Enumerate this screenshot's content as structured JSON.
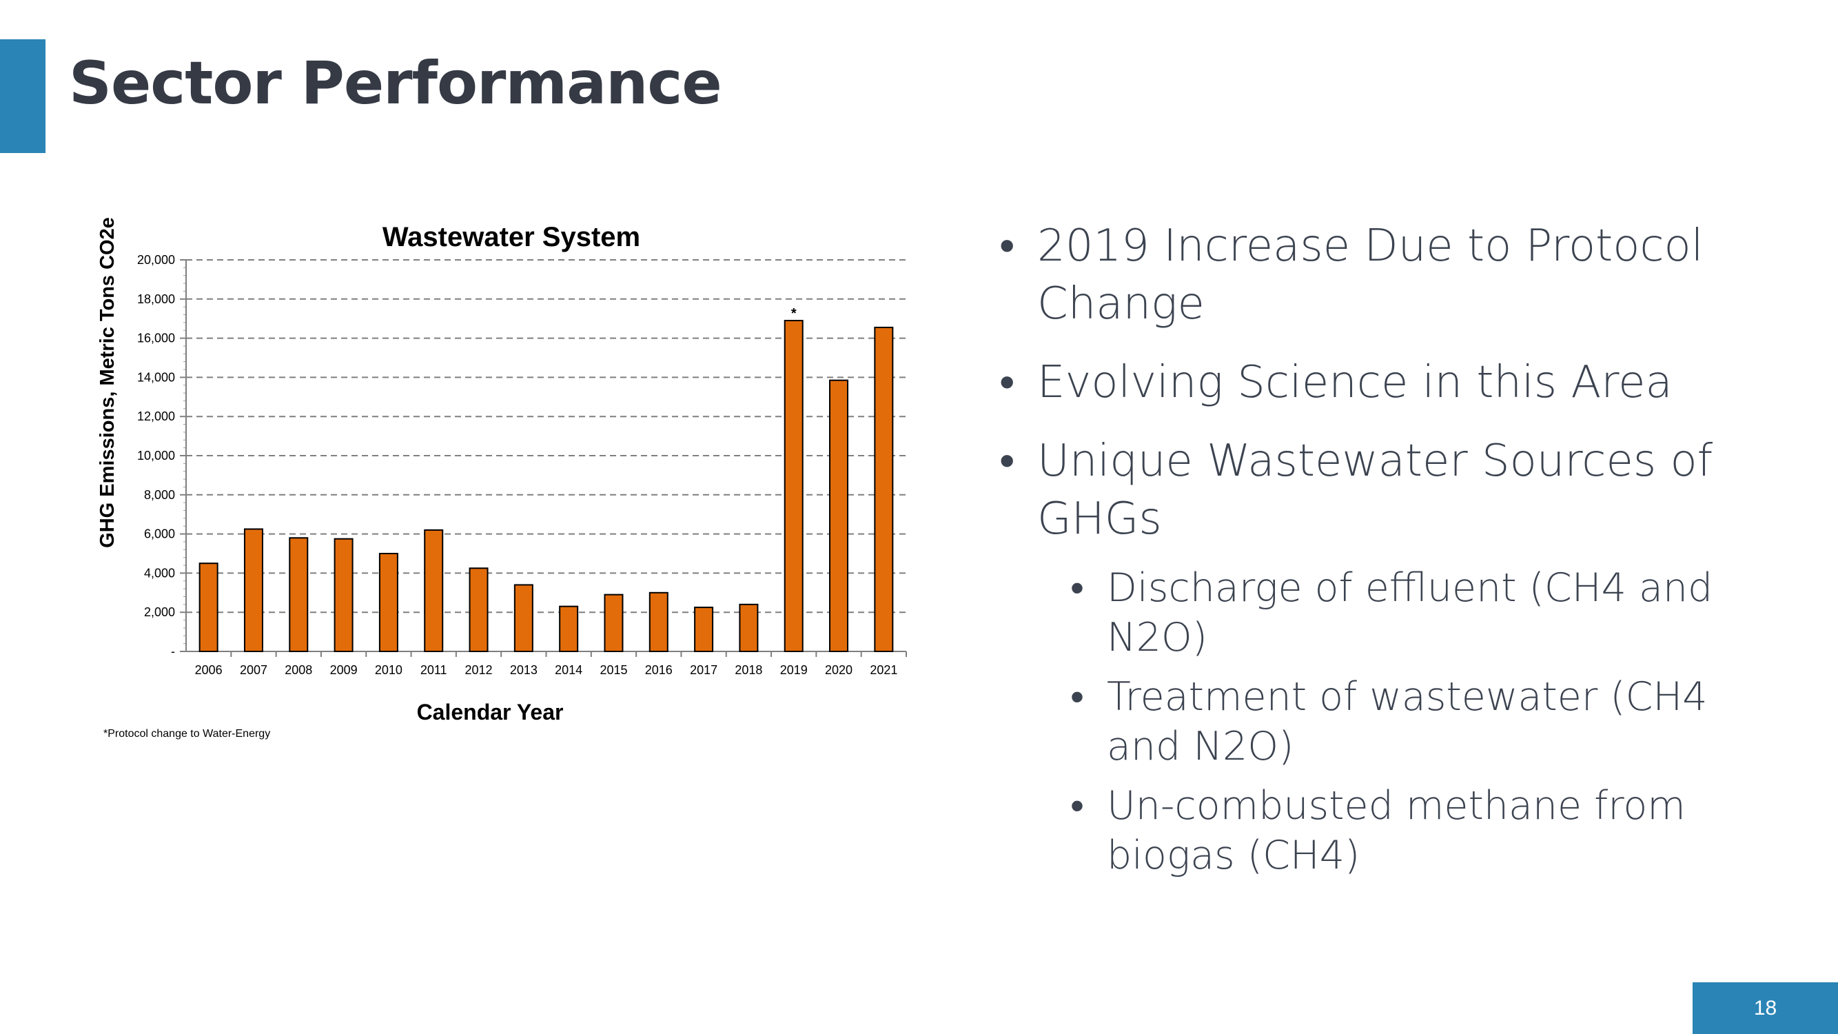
{
  "slide": {
    "title": "Sector Performance",
    "page_number": "18",
    "accent_color": "#2a84b5"
  },
  "bullets": [
    {
      "text": "2019 Increase Due to Protocol Change"
    },
    {
      "text": "Evolving Science in this Area"
    },
    {
      "text": "Unique Wastewater Sources of GHGs",
      "sub": [
        {
          "text": "Discharge of effluent (CH4 and N2O)"
        },
        {
          "text": "Treatment of wastewater (CH4 and N2O)"
        },
        {
          "text": "Un-combusted methane from biogas (CH4)"
        }
      ]
    }
  ],
  "chart_data": {
    "type": "bar",
    "title": "Wastewater System",
    "xlabel": "Calendar Year",
    "ylabel": "GHG Emissions, Metric Tons CO2e",
    "footnote": "*Protocol change to Water-Energy",
    "categories": [
      "2006",
      "2007",
      "2008",
      "2009",
      "2010",
      "2011",
      "2012",
      "2013",
      "2014",
      "2015",
      "2016",
      "2017",
      "2018",
      "2019",
      "2020",
      "2021"
    ],
    "values": [
      4500,
      6250,
      5800,
      5750,
      5000,
      6200,
      4250,
      3400,
      2300,
      2900,
      3000,
      2250,
      2400,
      16900,
      13850,
      16550
    ],
    "ylim": [
      0,
      20000
    ],
    "yticks": [
      0,
      2000,
      4000,
      6000,
      8000,
      10000,
      12000,
      14000,
      16000,
      18000,
      20000
    ],
    "ytick_labels": [
      "-",
      "2,000",
      "4,000",
      "6,000",
      "8,000",
      "10,000",
      "12,000",
      "14,000",
      "16,000",
      "18,000",
      "20,000"
    ],
    "grid": true,
    "bar_color": "#e36c0a",
    "annotations": [
      {
        "category": "2019",
        "text": "*"
      }
    ]
  }
}
